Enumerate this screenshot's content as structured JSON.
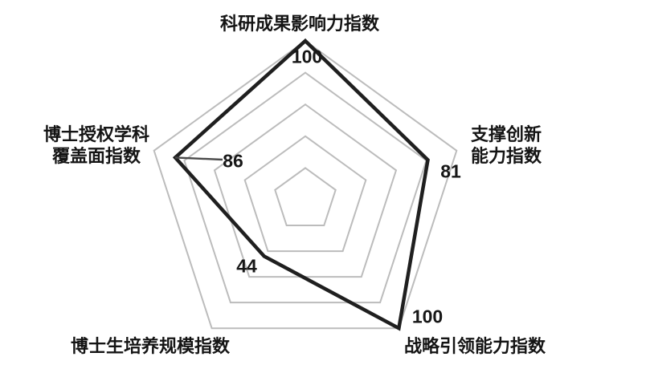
{
  "figure": {
    "background": "#ffffff",
    "description_visible_text_only": true
  },
  "chart_data": {
    "type": "radar",
    "title": "",
    "categories": [
      "科研成果影响力指数",
      "支撑创新能力指数",
      "战略引领能力指数",
      "博士生培养规模指数",
      "博士授权学科覆盖面指数"
    ],
    "values": [
      100,
      81,
      100,
      44,
      86
    ],
    "axis_range": [
      0,
      100
    ],
    "grid_rings": [
      20,
      40,
      60,
      80,
      100
    ],
    "grid_visible": true,
    "radial_spokes_visible": false,
    "legend_position": "none",
    "axis_labels": [
      "科研成果影响力指数",
      "支撑创新\n能力指数",
      "战略引领能力指数",
      "博士生培养规模指数",
      "博士授权学科\n覆盖面指数"
    ],
    "value_labels": [
      "100",
      "81",
      "100",
      "44",
      "86"
    ],
    "callout": {
      "value": "86",
      "style": "leader-line-from-left-vertex"
    },
    "colors": {
      "grid": "#bcbcbc",
      "series": "#1f1f1f",
      "text": "#141414",
      "background": "#ffffff",
      "leader_line": "#4a4a4a"
    }
  }
}
